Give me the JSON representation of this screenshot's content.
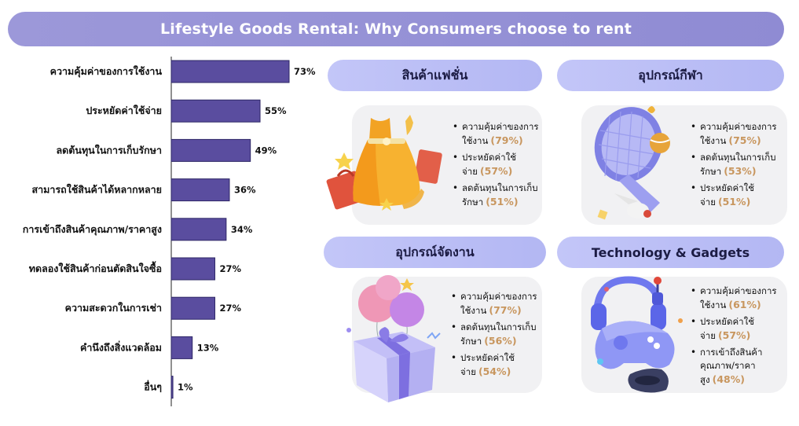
{
  "header": {
    "title": "Lifestyle Goods Rental: Why Consumers choose to rent"
  },
  "chart_data": {
    "type": "bar",
    "orientation": "horizontal",
    "categories": [
      "ความคุ้มค่าของการใช้งาน",
      "ประหยัดค่าใช้จ่าย",
      "ลดต้นทุนในการเก็บรักษา",
      "สามารถใช้สินค้าได้หลากหลาย",
      "การเข้าถึงสินค้าคุณภาพ/ราคาสูง",
      "ทดลองใช้สินค้าก่อนตัดสินใจซื้อ",
      "ความสะดวกในการเช่า",
      "คำนึงถึงสิ่งแวดล้อม",
      "อื่นๆ"
    ],
    "values": [
      73,
      55,
      49,
      36,
      34,
      27,
      27,
      13,
      1
    ],
    "value_labels": [
      "73%",
      "55%",
      "49%",
      "36%",
      "34%",
      "27%",
      "27%",
      "13%",
      "1%"
    ],
    "bar_color": "#5a4d9f"
  },
  "cards": [
    {
      "id": "fashion",
      "title": "สินค้าแฟชั่น",
      "icon": "fashion-dress-icon",
      "reasons": [
        {
          "text": "ความคุ้มค่าของการใช้งาน",
          "pct": "(79%)"
        },
        {
          "text": "ประหยัดค่าใช้จ่าย",
          "pct": "(57%)"
        },
        {
          "text": "ลดต้นทุนในการเก็บรักษา",
          "pct": "(51%)"
        }
      ]
    },
    {
      "id": "sports",
      "title": "อุปกรณ์กีฬา",
      "icon": "tennis-racket-icon",
      "reasons": [
        {
          "text": "ความคุ้มค่าของการใช้งาน",
          "pct": "(75%)"
        },
        {
          "text": "ลดต้นทุนในการเก็บรักษา",
          "pct": "(53%)"
        },
        {
          "text": "ประหยัดค่าใช้จ่าย",
          "pct": "(51%)"
        }
      ]
    },
    {
      "id": "event",
      "title": "อุปกรณ์จัดงาน",
      "icon": "gift-balloon-icon",
      "reasons": [
        {
          "text": "ความคุ้มค่าของการใช้งาน",
          "pct": "(77%)"
        },
        {
          "text": "ลดต้นทุนในการเก็บรักษา",
          "pct": "(56%)"
        },
        {
          "text": "ประหยัดค่าใช้จ่าย",
          "pct": "(54%)"
        }
      ]
    },
    {
      "id": "tech",
      "title": "Technology & Gadgets",
      "icon": "gamepad-headphones-icon",
      "reasons": [
        {
          "text": "ความคุ้มค่าของการใช้งาน",
          "pct": "(61%)"
        },
        {
          "text": "ประหยัดค่าใช้จ่าย",
          "pct": "(57%)"
        },
        {
          "text": "การเข้าถึงสินค้าคุณภาพ/ราคาสูง",
          "pct": "(48%)"
        }
      ]
    }
  ],
  "colors": {
    "accent": "#8f8bd3",
    "card_header": "#b8bbf5",
    "card_body": "#f1f1f3",
    "percent_text": "#c8965e"
  }
}
